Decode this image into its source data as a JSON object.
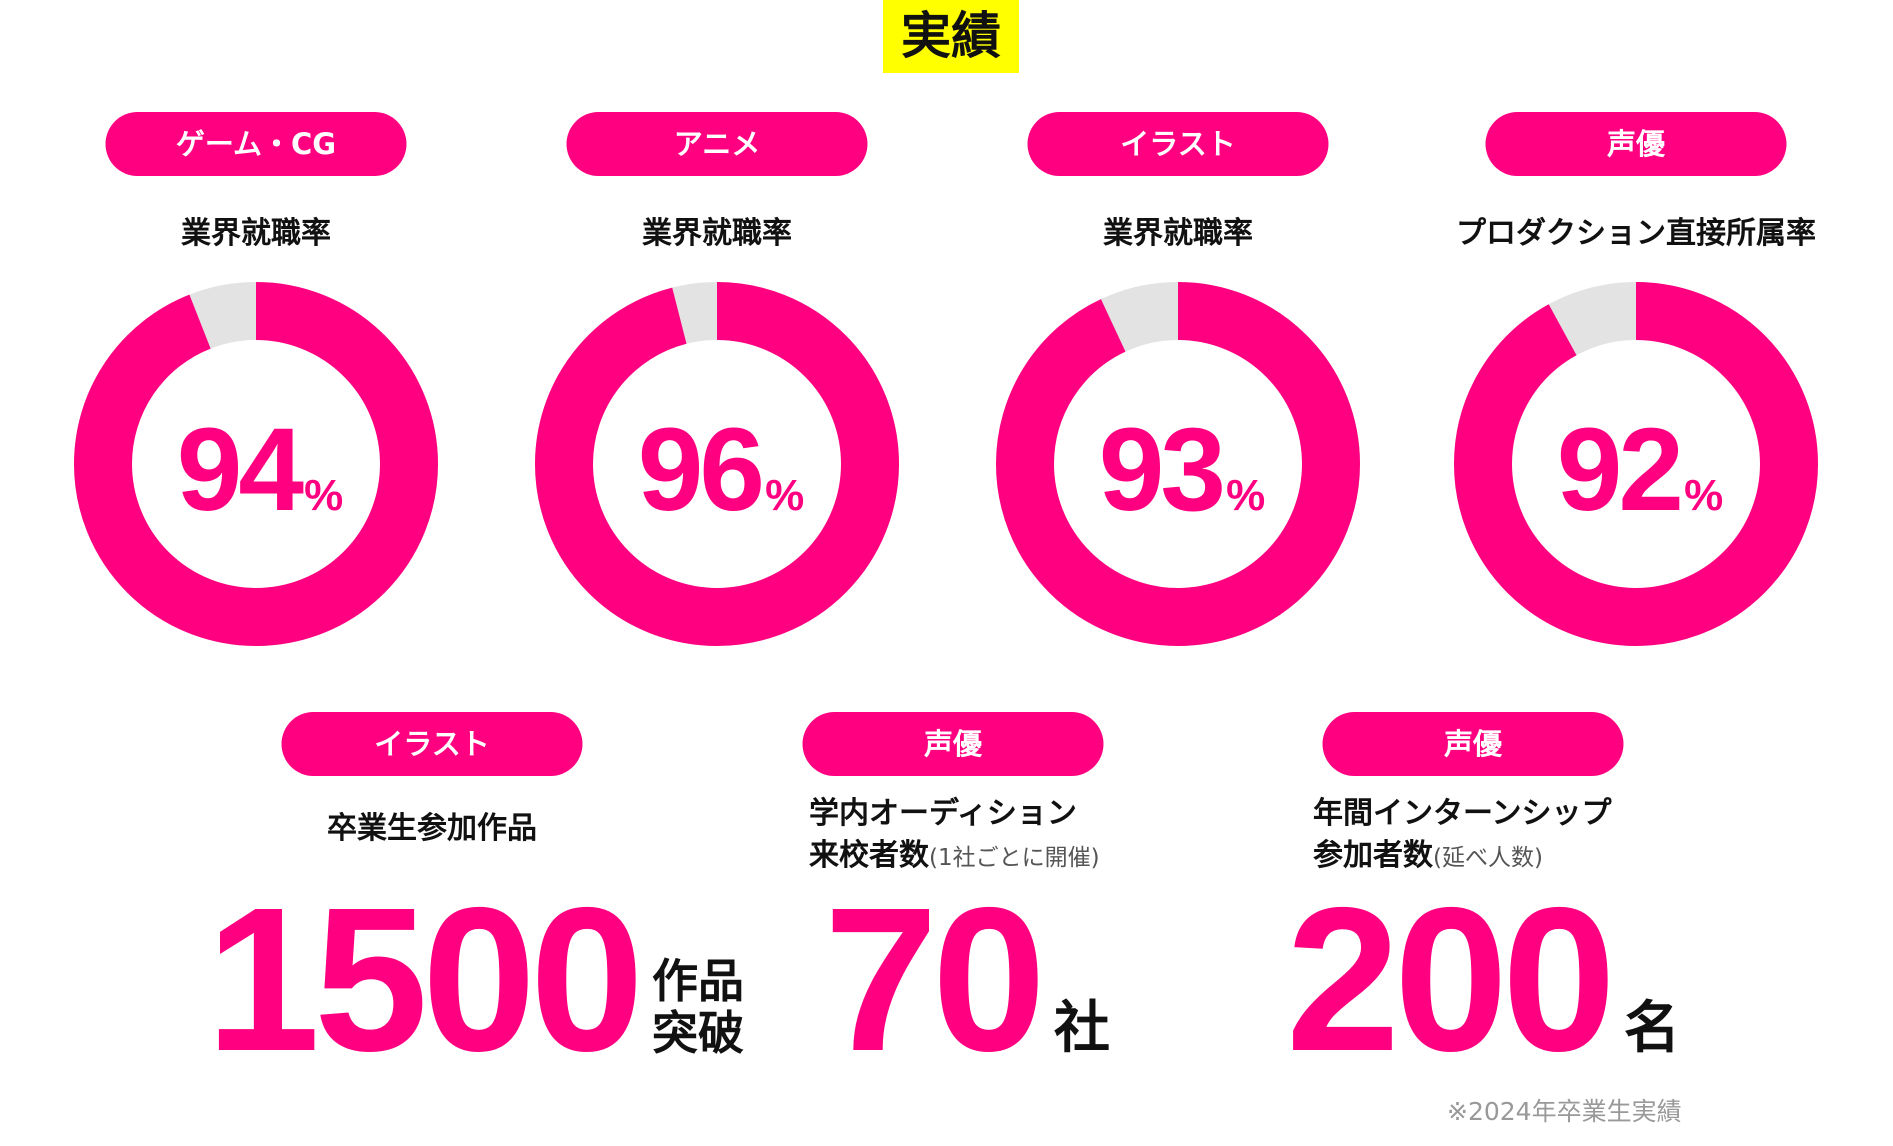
{
  "title": "実績",
  "colors": {
    "accent": "#ff0080",
    "remainder": "#e3e3e3",
    "title_highlight": "#ffff00"
  },
  "chart_data": [
    {
      "type": "pie",
      "variant": "donut",
      "category": "ゲーム・CG",
      "label": "業界就職率",
      "value": 94,
      "unit": "%"
    },
    {
      "type": "pie",
      "variant": "donut",
      "category": "アニメ",
      "label": "業界就職率",
      "value": 96,
      "unit": "%"
    },
    {
      "type": "pie",
      "variant": "donut",
      "category": "イラスト",
      "label": "業界就職率",
      "value": 93,
      "unit": "%"
    },
    {
      "type": "pie",
      "variant": "donut",
      "category": "声優",
      "label": "プロダクション直接所属率",
      "value": 92,
      "unit": "%"
    }
  ],
  "stats": [
    {
      "category": "イラスト",
      "label_line1": "卒業生参加作品",
      "label_line2": "",
      "note": "",
      "value": "1500",
      "unit_line1": "作品",
      "unit_line2": "突破"
    },
    {
      "category": "声優",
      "label_line1": "学内オーディション",
      "label_line2": "来校者数",
      "note": "(1社ごとに開催)",
      "value": "70",
      "unit_line1": "社",
      "unit_line2": ""
    },
    {
      "category": "声優",
      "label_line1": "年間インターンシップ",
      "label_line2": "参加者数",
      "note": "(延べ人数)",
      "value": "200",
      "unit_line1": "名",
      "unit_line2": ""
    }
  ],
  "footnote": "※2024年卒業生実績"
}
